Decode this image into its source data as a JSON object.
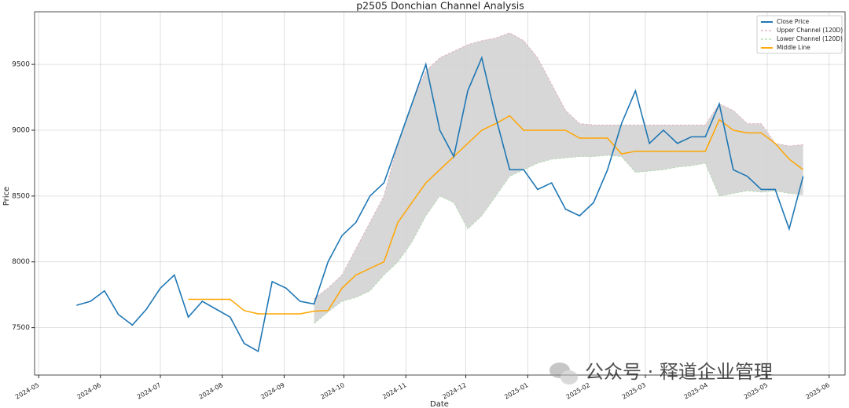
{
  "chart_data": {
    "type": "line",
    "title": "p2505 Donchian Channel Analysis",
    "x_label": "Date",
    "y_label": "Price",
    "categories": [
      null,
      null,
      null,
      null,
      null,
      null,
      null,
      null,
      null,
      null,
      null,
      null,
      null,
      null,
      null,
      null,
      null,
      null,
      null,
      null,
      null,
      null,
      null,
      null,
      null,
      null,
      null,
      null,
      null,
      null,
      null,
      null,
      null,
      null,
      null,
      null,
      null,
      null,
      null,
      null,
      null,
      null,
      null,
      null,
      null,
      null,
      null,
      null,
      null,
      null,
      null,
      null,
      null
    ],
    "xlim": [
      -3,
      55
    ],
    "xticks": [
      {
        "value": -2.71,
        "label": "2024-05"
      },
      {
        "value": 1.71,
        "label": "2024-06"
      },
      {
        "value": 6,
        "label": "2024-07"
      },
      {
        "value": 10.43,
        "label": "2024-08"
      },
      {
        "value": 14.86,
        "label": "2024-09"
      },
      {
        "value": 19.14,
        "label": "2024-10"
      },
      {
        "value": 23.57,
        "label": "2024-11"
      },
      {
        "value": 27.86,
        "label": "2024-12"
      },
      {
        "value": 32.29,
        "label": "2025-01"
      },
      {
        "value": 36.71,
        "label": "2025-02"
      },
      {
        "value": 40.71,
        "label": "2025-03"
      },
      {
        "value": 45.14,
        "label": "2025-04"
      },
      {
        "value": 49.43,
        "label": "2025-05"
      },
      {
        "value": 53.86,
        "label": "2025-06"
      }
    ],
    "ylim": [
      7140,
      9900
    ],
    "yticks": [
      7500,
      8000,
      8500,
      9000,
      9500
    ],
    "grid": true,
    "legend": "upper right",
    "fill_color": "#d3d3d3",
    "series": [
      {
        "name": "Close Price",
        "color": "#1f77b4",
        "values": [
          7670,
          7700,
          7780,
          7600,
          7520,
          7640,
          7800,
          7900,
          7580,
          7700,
          7640,
          7580,
          7380,
          7320,
          7850,
          7800,
          7700,
          7680,
          8000,
          8200,
          8300,
          8500,
          8600,
          8900,
          9200,
          9500,
          9000,
          8800,
          9300,
          9550,
          9100,
          8700,
          8700,
          8550,
          8600,
          8400,
          8350,
          8450,
          8700,
          9050,
          9300,
          8900,
          9000,
          8900,
          8950,
          8950,
          9200,
          8700,
          8650,
          8550,
          8550,
          8250,
          8650
        ]
      },
      {
        "name": "Upper Channel (120D)",
        "color": "#e0a8b0",
        "values": [
          null,
          null,
          null,
          null,
          null,
          null,
          null,
          null,
          null,
          null,
          null,
          null,
          null,
          null,
          null,
          null,
          null,
          7720,
          7800,
          7900,
          8100,
          8300,
          8500,
          8900,
          9200,
          9450,
          9550,
          9600,
          9650,
          9680,
          9700,
          9740,
          9680,
          9550,
          9350,
          9150,
          9050,
          9040,
          9040,
          9040,
          9040,
          9040,
          9040,
          9040,
          9040,
          9040,
          9200,
          9150,
          9050,
          9050,
          8900,
          8880,
          8890
        ]
      },
      {
        "name": "Lower Channel (120D)",
        "color": "#a8d8a8",
        "values": [
          null,
          null,
          null,
          null,
          null,
          null,
          null,
          null,
          null,
          null,
          null,
          null,
          null,
          null,
          null,
          null,
          null,
          7530,
          7620,
          7700,
          7730,
          7780,
          7900,
          8000,
          8150,
          8350,
          8500,
          8450,
          8250,
          8350,
          8500,
          8650,
          8700,
          8750,
          8780,
          8790,
          8800,
          8800,
          8810,
          8800,
          8680,
          8690,
          8700,
          8720,
          8730,
          8750,
          8500,
          8520,
          8540,
          8530,
          8540,
          8520,
          8510
        ]
      },
      {
        "name": "Middle Line",
        "color": "#ffa500",
        "values": [
          null,
          null,
          null,
          null,
          null,
          null,
          null,
          null,
          7715,
          7715,
          7715,
          7715,
          7630,
          7605,
          7605,
          7605,
          7605,
          7625,
          7630,
          7800,
          7900,
          7950,
          8000,
          8300,
          8450,
          8600,
          8700,
          8800,
          8900,
          9000,
          9050,
          9110,
          9000,
          9000,
          9000,
          9000,
          8940,
          8940,
          8940,
          8820,
          8840,
          8840,
          8840,
          8840,
          8840,
          8840,
          9080,
          9000,
          8980,
          8980,
          8900,
          8780,
          8700
        ]
      }
    ],
    "watermark": "公众号 · 释道企业管理"
  }
}
